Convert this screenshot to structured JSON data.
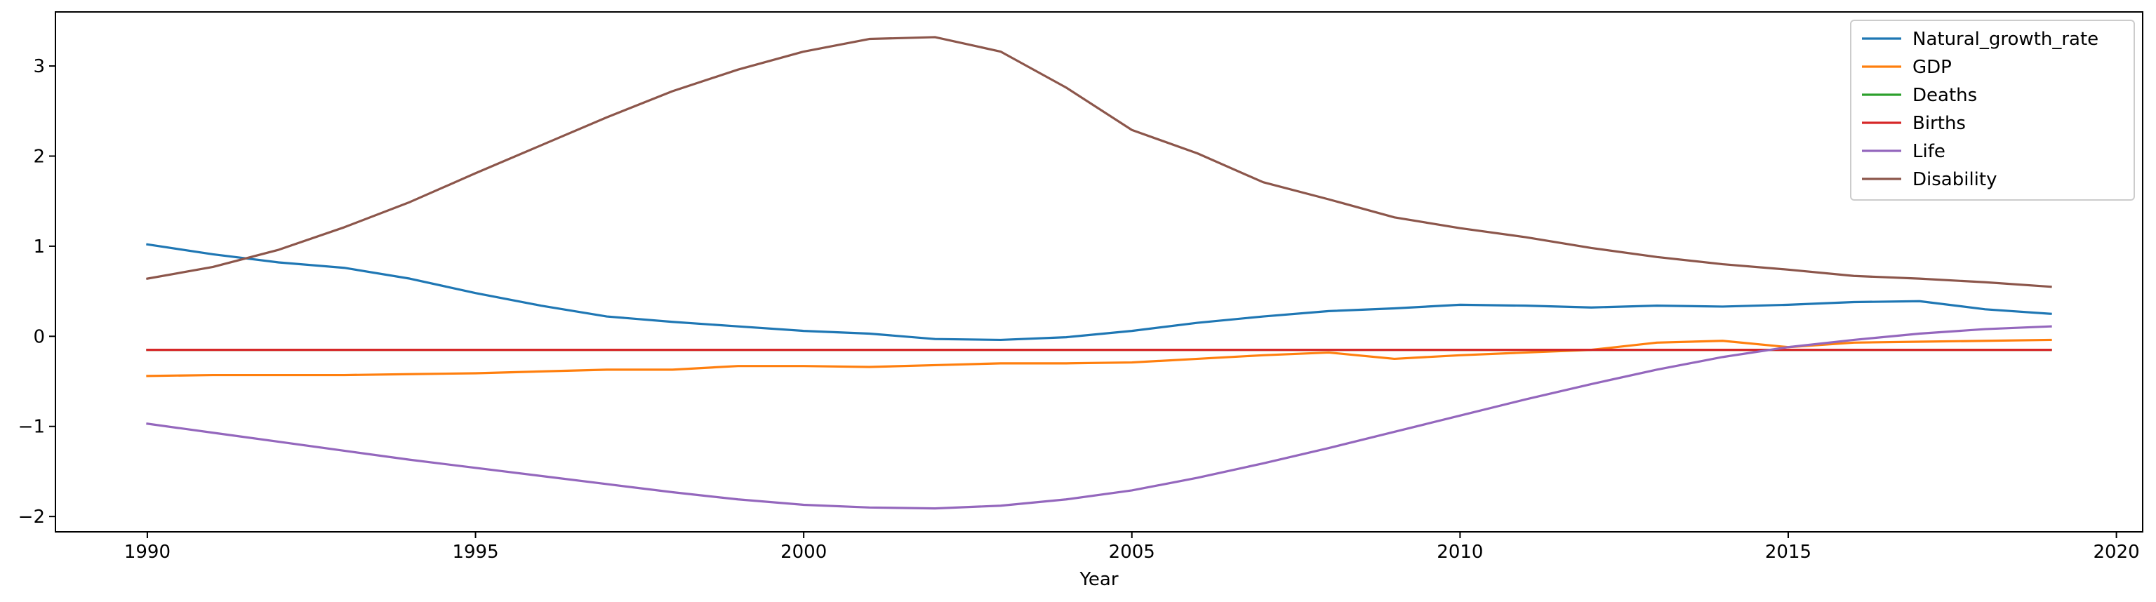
{
  "chart_data": {
    "type": "line",
    "title": "",
    "xlabel": "Year",
    "ylabel": "",
    "xlim": [
      1988.6,
      2020.4
    ],
    "ylim": [
      -2.17,
      3.6
    ],
    "xticks": [
      1990,
      1995,
      2000,
      2005,
      2010,
      2015,
      2020
    ],
    "yticks": [
      -2,
      -1,
      0,
      1,
      2,
      3
    ],
    "ytick_labels": [
      "−2",
      "−1",
      "0",
      "1",
      "2",
      "3"
    ],
    "grid": false,
    "legend_position": "top-right",
    "x": [
      1990,
      1991,
      1992,
      1993,
      1994,
      1995,
      1996,
      1997,
      1998,
      1999,
      2000,
      2001,
      2002,
      2003,
      2004,
      2005,
      2006,
      2007,
      2008,
      2009,
      2010,
      2011,
      2012,
      2013,
      2014,
      2015,
      2016,
      2017,
      2018,
      2019
    ],
    "series": [
      {
        "name": "Natural_growth_rate",
        "color": "#1f77b4",
        "values": [
          1.02,
          0.91,
          0.82,
          0.76,
          0.64,
          0.48,
          0.34,
          0.22,
          0.16,
          0.11,
          0.06,
          0.03,
          -0.03,
          -0.04,
          -0.01,
          0.06,
          0.15,
          0.22,
          0.28,
          0.31,
          0.35,
          0.34,
          0.32,
          0.34,
          0.33,
          0.35,
          0.38,
          0.39,
          0.3,
          0.25
        ]
      },
      {
        "name": "GDP",
        "color": "#ff7f0e",
        "values": [
          -0.44,
          -0.43,
          -0.43,
          -0.43,
          -0.42,
          -0.41,
          -0.39,
          -0.37,
          -0.37,
          -0.33,
          -0.33,
          -0.34,
          -0.32,
          -0.3,
          -0.3,
          -0.29,
          -0.25,
          -0.21,
          -0.18,
          -0.25,
          -0.21,
          -0.18,
          -0.15,
          -0.07,
          -0.05,
          -0.12,
          -0.07,
          -0.06,
          -0.05,
          -0.04
        ]
      },
      {
        "name": "Deaths",
        "color": "#2ca02c",
        "values": [
          -0.15,
          -0.15,
          -0.15,
          -0.15,
          -0.15,
          -0.15,
          -0.15,
          -0.15,
          -0.15,
          -0.15,
          -0.15,
          -0.15,
          -0.15,
          -0.15,
          -0.15,
          -0.15,
          -0.15,
          -0.15,
          -0.15,
          -0.15,
          -0.15,
          -0.15,
          -0.15,
          -0.15,
          -0.15,
          -0.15,
          -0.15,
          -0.15,
          -0.15,
          -0.15
        ]
      },
      {
        "name": "Births",
        "color": "#d62728",
        "values": [
          -0.15,
          -0.15,
          -0.15,
          -0.15,
          -0.15,
          -0.15,
          -0.15,
          -0.15,
          -0.15,
          -0.15,
          -0.15,
          -0.15,
          -0.15,
          -0.15,
          -0.15,
          -0.15,
          -0.15,
          -0.15,
          -0.15,
          -0.15,
          -0.15,
          -0.15,
          -0.15,
          -0.15,
          -0.15,
          -0.15,
          -0.15,
          -0.15,
          -0.15,
          -0.15
        ]
      },
      {
        "name": "Life",
        "color": "#9467bd",
        "values": [
          -0.97,
          -1.07,
          -1.17,
          -1.27,
          -1.37,
          -1.46,
          -1.55,
          -1.64,
          -1.73,
          -1.81,
          -1.87,
          -1.9,
          -1.91,
          -1.88,
          -1.81,
          -1.71,
          -1.57,
          -1.41,
          -1.24,
          -1.06,
          -0.88,
          -0.7,
          -0.53,
          -0.37,
          -0.23,
          -0.12,
          -0.04,
          0.03,
          0.08,
          0.11
        ]
      },
      {
        "name": "Disability",
        "color": "#8c564b",
        "values": [
          0.64,
          0.77,
          0.96,
          1.21,
          1.49,
          1.81,
          2.12,
          2.43,
          2.72,
          2.96,
          3.16,
          3.3,
          3.32,
          3.16,
          2.76,
          2.29,
          2.03,
          1.71,
          1.52,
          1.32,
          1.2,
          1.1,
          0.98,
          0.88,
          0.8,
          0.74,
          0.67,
          0.64,
          0.6,
          0.55
        ]
      }
    ]
  }
}
